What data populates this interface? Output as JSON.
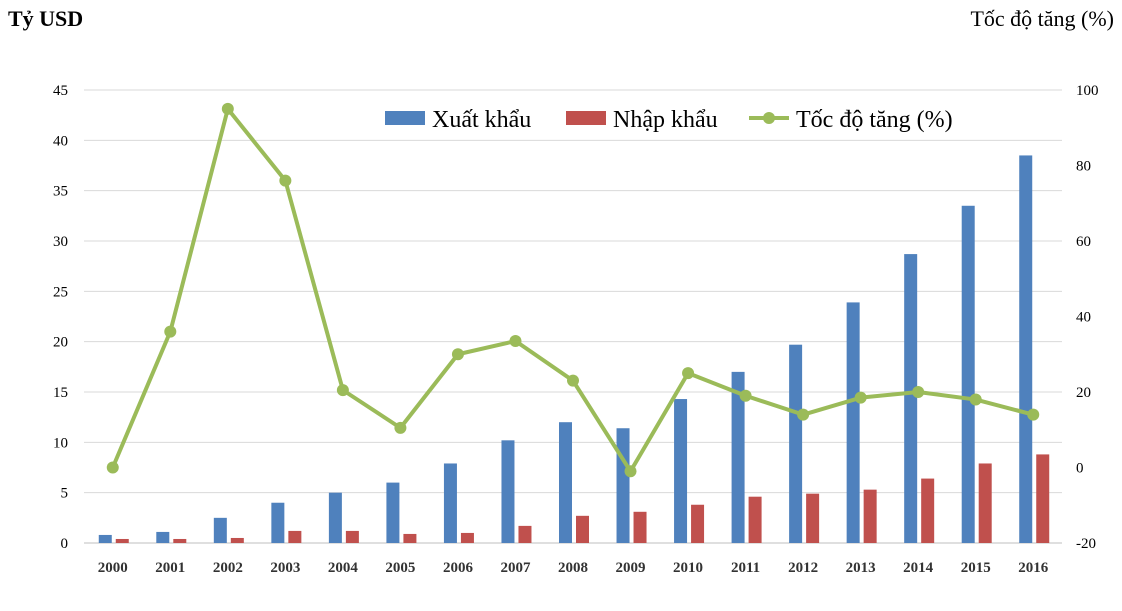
{
  "chart_data": {
    "type": "bar",
    "title_left": "Tỷ USD",
    "title_right": "Tốc độ tăng (%)",
    "categories": [
      "2000",
      "2001",
      "2002",
      "2003",
      "2004",
      "2005",
      "2006",
      "2007",
      "2008",
      "2009",
      "2010",
      "2011",
      "2012",
      "2013",
      "2014",
      "2015",
      "2016"
    ],
    "series": [
      {
        "name": "Xuất khẩu",
        "kind": "bar",
        "axis": "left",
        "color": "#4F81BD",
        "values": [
          0.8,
          1.1,
          2.5,
          4.0,
          5.0,
          6.0,
          7.9,
          10.2,
          12.0,
          11.4,
          14.3,
          17.0,
          19.7,
          23.9,
          28.7,
          33.5,
          38.5
        ]
      },
      {
        "name": "Nhập khẩu",
        "kind": "bar",
        "axis": "left",
        "color": "#C0504D",
        "values": [
          0.4,
          0.4,
          0.5,
          1.2,
          1.2,
          0.9,
          1.0,
          1.7,
          2.7,
          3.1,
          3.8,
          4.6,
          4.9,
          5.3,
          6.4,
          7.9,
          8.8
        ]
      },
      {
        "name": "Tốc độ tăng (%)",
        "kind": "line",
        "axis": "right",
        "color": "#9BBB59",
        "values": [
          0,
          36,
          95,
          76,
          20.5,
          10.5,
          30,
          33.5,
          23,
          -1,
          25,
          19,
          14,
          18.5,
          20,
          18,
          14
        ]
      }
    ],
    "ylim_left": [
      0,
      45
    ],
    "yticks_left": [
      0,
      5,
      10,
      15,
      20,
      25,
      30,
      35,
      40,
      45
    ],
    "ylim_right": [
      -20,
      100
    ],
    "yticks_right": [
      -20,
      0,
      20,
      40,
      60,
      80,
      100
    ],
    "grid": true,
    "legend": "top-center"
  }
}
